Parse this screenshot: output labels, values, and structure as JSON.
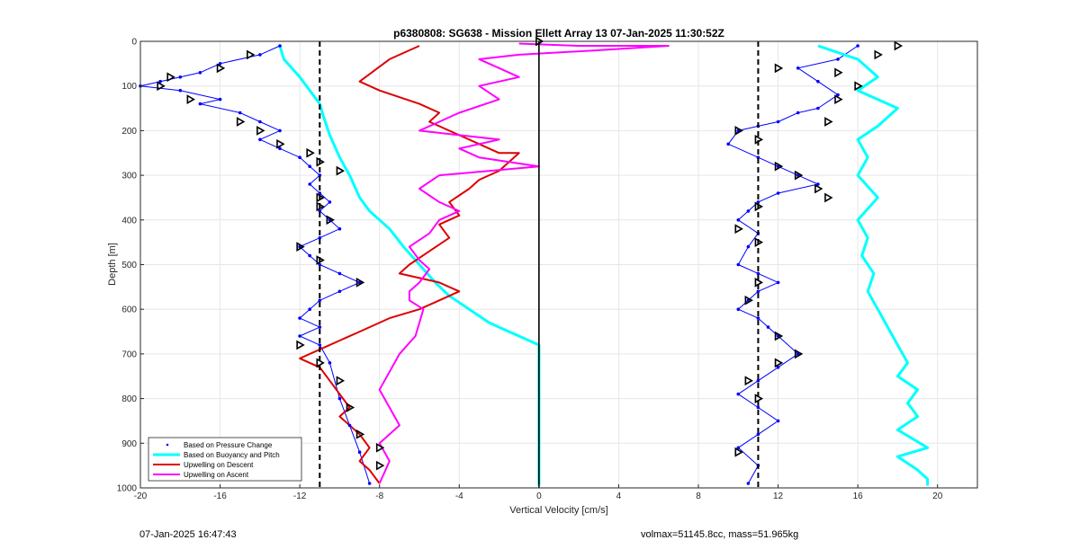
{
  "chart_data": {
    "type": "line",
    "title": "p6380808: SG638 - Mission Ellett Array 13 07-Jan-2025 11:30:52Z",
    "xlabel": "Vertical Velocity [cm/s]",
    "ylabel": "Depth [m]",
    "xlim": [
      -20,
      22
    ],
    "ylim": [
      1000,
      0
    ],
    "y_reversed": true,
    "grid": true,
    "x_ticks": [
      -20,
      -16,
      -12,
      -8,
      -4,
      0,
      4,
      8,
      12,
      16,
      20
    ],
    "y_ticks": [
      0,
      100,
      200,
      300,
      400,
      500,
      600,
      700,
      800,
      900,
      1000
    ],
    "legend": {
      "placement": "bottom-left",
      "entries": [
        "Based on Pressure Change",
        "Based on Buoyancy and Pitch",
        "Upwelling on Descent",
        "Upwelling on Ascent"
      ]
    },
    "reference_lines": [
      {
        "style": "dashed",
        "color": "#000000",
        "x": -11
      },
      {
        "style": "dashed",
        "color": "#000000",
        "x": 11
      },
      {
        "style": "solid",
        "color": "#000000",
        "x": 0
      }
    ],
    "series": [
      {
        "name": "Based on Pressure Change",
        "color": "#0000ff",
        "marker": "dot",
        "branches": [
          {
            "x": [
              -13,
              -14,
              -16,
              -17,
              -18,
              -19,
              -20,
              -18,
              -16,
              -17,
              -15,
              -14,
              -13,
              -14,
              -13,
              -12,
              -11.5,
              -11,
              -11.5,
              -11,
              -10.5,
              -11,
              -10.5,
              -10,
              -11,
              -12,
              -11.5,
              -11,
              -10,
              -9,
              -10,
              -11,
              -11.5,
              -12,
              -11,
              -12,
              -11,
              -10.5,
              -10,
              -9.5,
              -9,
              -8.5
            ],
            "y": [
              10,
              30,
              50,
              70,
              80,
              90,
              100,
              110,
              130,
              140,
              160,
              180,
              200,
              220,
              240,
              260,
              280,
              300,
              320,
              340,
              360,
              380,
              400,
              420,
              440,
              460,
              480,
              500,
              520,
              540,
              560,
              580,
              600,
              620,
              640,
              660,
              680,
              720,
              800,
              860,
              920,
              990
            ]
          },
          {
            "x": [
              16,
              15,
              13,
              14,
              15,
              14,
              13,
              12,
              11,
              10,
              9.5,
              11,
              12,
              13,
              14,
              12,
              11,
              10.5,
              10,
              11,
              10.5,
              10,
              11,
              12,
              11,
              10.5,
              10,
              11,
              11.5,
              12,
              13,
              12,
              11,
              10,
              11,
              12,
              11,
              10,
              11,
              10.5
            ],
            "y": [
              10,
              40,
              60,
              90,
              120,
              150,
              160,
              180,
              190,
              200,
              230,
              260,
              280,
              300,
              320,
              340,
              360,
              380,
              400,
              430,
              460,
              500,
              520,
              540,
              560,
              580,
              600,
              620,
              640,
              660,
              700,
              730,
              760,
              790,
              820,
              850,
              880,
              910,
              950,
              990
            ]
          }
        ]
      },
      {
        "name": "Based on Buoyancy and Pitch",
        "color": "#00ffff",
        "marker": "line",
        "branches": [
          {
            "x": [
              -13,
              -12.8,
              -12,
              -11.5,
              -11,
              -10.8,
              -10.5,
              -10,
              -9.5,
              -9,
              -8.5,
              -7.5,
              -6.8,
              -6.2,
              -5.8,
              -5.2,
              -4.5,
              -3.5,
              -2.5,
              -1.5,
              -0.5,
              0,
              0,
              0
            ],
            "y": [
              10,
              40,
              80,
              110,
              140,
              170,
              210,
              260,
              300,
              350,
              380,
              420,
              460,
              490,
              510,
              540,
              570,
              600,
              630,
              650,
              670,
              680,
              800,
              995
            ]
          },
          {
            "x": [
              14,
              16,
              17,
              16,
              18,
              17,
              16,
              16.5,
              16,
              17,
              16,
              16.5,
              16.2,
              16.8,
              16.5,
              17,
              17.5,
              18,
              18.5,
              18,
              19,
              18.5,
              19,
              18,
              19.5,
              18,
              19,
              19.5,
              19.5
            ],
            "y": [
              10,
              40,
              80,
              110,
              150,
              190,
              220,
              260,
              300,
              350,
              400,
              440,
              480,
              520,
              560,
              600,
              640,
              680,
              720,
              750,
              780,
              810,
              840,
              870,
              910,
              930,
              960,
              980,
              995
            ]
          }
        ]
      },
      {
        "name": "Upwelling on Descent",
        "color": "#dd0000",
        "marker": "line",
        "x": [
          -6,
          -7.5,
          -9,
          -8,
          -6,
          -5,
          -5.5,
          -4,
          -3,
          -2,
          -1,
          -1.5,
          -2,
          -3,
          -3.5,
          -4.5,
          -4,
          -5,
          -4.5,
          -5.5,
          -6.5,
          -7,
          -6,
          -5,
          -4,
          -5,
          -6,
          -7.5,
          -9,
          -10,
          -11,
          -12,
          -11,
          -10.5,
          -10,
          -9.5,
          -10,
          -9.5,
          -9,
          -8.5,
          -9,
          -8.5,
          -8
        ],
        "y": [
          10,
          40,
          90,
          110,
          140,
          160,
          180,
          210,
          230,
          250,
          250,
          270,
          290,
          310,
          330,
          360,
          390,
          410,
          440,
          470,
          500,
          520,
          530,
          540,
          560,
          580,
          600,
          620,
          650,
          670,
          690,
          710,
          730,
          760,
          790,
          820,
          840,
          860,
          880,
          910,
          940,
          960,
          990
        ]
      },
      {
        "name": "Upwelling on Ascent",
        "color": "#ff00ff",
        "marker": "line",
        "x": [
          -1,
          2,
          6.5,
          3,
          -1,
          -3,
          -2,
          -1,
          -3,
          -2,
          -4,
          -5,
          -6,
          -4,
          -2,
          -4,
          -3,
          0,
          -5,
          -6,
          -5,
          -4,
          -5,
          -5.5,
          -6.5,
          -6,
          -5.5,
          -6,
          -6.5,
          -6.5,
          -5.8,
          -6,
          -6.2,
          -7,
          -7.5,
          -8,
          -7.5,
          -7,
          -8,
          -7.5,
          -8
        ],
        "y": [
          5,
          10,
          10,
          20,
          30,
          40,
          60,
          80,
          100,
          130,
          160,
          180,
          200,
          210,
          220,
          240,
          260,
          280,
          300,
          330,
          360,
          380,
          400,
          430,
          460,
          490,
          510,
          540,
          560,
          580,
          600,
          630,
          660,
          700,
          740,
          780,
          820,
          860,
          900,
          940,
          990
        ]
      },
      {
        "name": "",
        "color": "#000000",
        "marker": "triangle",
        "x": [
          -14.5,
          -16,
          -18.5,
          -19,
          -17.5,
          -15,
          -14,
          -13,
          -11.5,
          -11,
          -10,
          -11,
          -11,
          -10.5,
          -12,
          -11,
          -9,
          -12,
          -11,
          -10,
          -9.5,
          -9,
          -8,
          -8,
          0
        ],
        "y": [
          30,
          60,
          80,
          100,
          130,
          180,
          200,
          230,
          250,
          270,
          290,
          350,
          370,
          400,
          460,
          490,
          540,
          680,
          720,
          760,
          820,
          880,
          910,
          950,
          0
        ]
      },
      {
        "name": "",
        "color": "#000000",
        "marker": "triangle",
        "x": [
          18,
          17,
          12,
          15,
          16,
          15,
          14.5,
          10,
          11,
          12,
          13,
          14,
          14.5,
          11,
          10,
          11,
          11,
          10.5,
          12,
          13,
          12,
          10.5,
          11,
          10
        ],
        "y": [
          10,
          30,
          60,
          70,
          100,
          130,
          180,
          200,
          220,
          280,
          300,
          330,
          350,
          370,
          420,
          450,
          540,
          580,
          660,
          700,
          720,
          760,
          800,
          920
        ]
      }
    ]
  },
  "footer": {
    "timestamp": "07-Jan-2025 16:47:43",
    "volume_mass": "volmax=51145.8cc, mass=51.965kg"
  }
}
